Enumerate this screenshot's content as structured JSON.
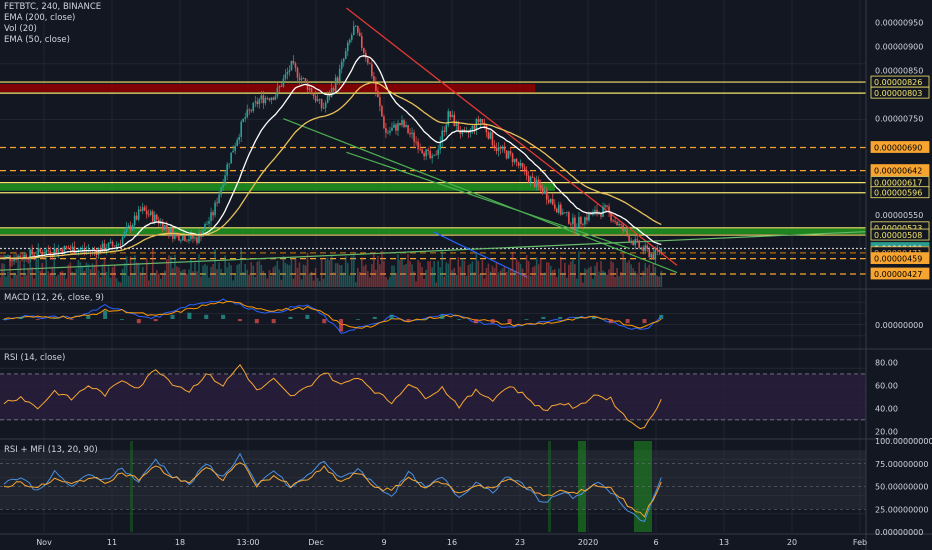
{
  "legend": {
    "symbol": "FETBTC, 240, BINANCE",
    "ema200": "EMA (200, close)",
    "vol": "Vol (20)",
    "ema50": "EMA (50, close)"
  },
  "panes": {
    "macd": "MACD (12, 26, close, 9)",
    "rsi": "RSI (14, close)",
    "rsimfi": "RSI + MFI (13, 20, 90)"
  },
  "colors": {
    "bg": "#131722",
    "grid": "#2a2e39",
    "up": "#26a69a",
    "down": "#ef5350",
    "ema200": "#ffffff",
    "ema50": "#e8c15a",
    "zone_red": "#8b0000",
    "zone_green": "#1e8f1e",
    "yellow_line": "#f5e56b",
    "orange_line": "#f7a530",
    "macd": "#2962ff",
    "signal": "#ff9800",
    "rsi": "#f7a530",
    "rsi_band": "#2a1f3d",
    "mfi": "#4a90e2"
  },
  "chart_data": [
    {
      "type": "candlestick",
      "pane": "price",
      "ylim": [
        4e-06,
        9.8e-06
      ],
      "y_ticks": [
        "0.00000950",
        "0.00000900",
        "0.00000850",
        "0.00000750",
        "0.00000550"
      ],
      "x_tick_labels": [
        "Nov",
        "11",
        "18",
        "13:00",
        "Dec",
        "9",
        "16",
        "23",
        "2020",
        "6",
        "13",
        "20",
        "Feb"
      ],
      "price_levels": [
        {
          "label": "0.00000826",
          "value": 8.26e-06,
          "style": "yellow"
        },
        {
          "label": "0.00000803",
          "value": 8.03e-06,
          "style": "yellow"
        },
        {
          "label": "0.00000690",
          "value": 6.9e-06,
          "style": "orange"
        },
        {
          "label": "0.00000642",
          "value": 6.42e-06,
          "style": "orange"
        },
        {
          "label": "0.00000617",
          "value": 6.17e-06,
          "style": "yellow"
        },
        {
          "label": "0.00000596",
          "value": 5.96e-06,
          "style": "yellow"
        },
        {
          "label": "0.00000523",
          "value": 5.23e-06,
          "style": "yellow"
        },
        {
          "label": "0.00000508",
          "value": 5.08e-06,
          "style": "yellow"
        },
        {
          "label": "0.00000480",
          "value": 4.8e-06,
          "style": "current"
        },
        {
          "label": "03:41:51",
          "value": 4.69e-06,
          "style": "timer"
        },
        {
          "label": "0.00000471",
          "value": 4.71e-06,
          "style": "orange-dark"
        },
        {
          "label": "0.00000459",
          "value": 4.59e-06,
          "style": "orange"
        },
        {
          "label": "0.00000427",
          "value": 4.27e-06,
          "style": "orange"
        }
      ],
      "zones": [
        {
          "color": "red",
          "low": 8.05e-06,
          "high": 8.22e-06
        },
        {
          "color": "green",
          "low": 6e-06,
          "high": 6.15e-06
        },
        {
          "color": "green",
          "low": 5.1e-06,
          "high": 5.22e-06
        }
      ],
      "series_path": [
        [
          0,
          4.6e-06
        ],
        [
          3,
          4.65e-06
        ],
        [
          6,
          4.75e-06
        ],
        [
          9,
          4.8e-06
        ],
        [
          12,
          4.75e-06
        ],
        [
          15,
          4.9e-06
        ],
        [
          18,
          5.6e-06
        ],
        [
          20,
          5.4e-06
        ],
        [
          22,
          5.1e-06
        ],
        [
          25,
          5e-06
        ],
        [
          27,
          5.5e-06
        ],
        [
          29,
          6.6e-06
        ],
        [
          31,
          7.5e-06
        ],
        [
          33,
          7.9e-06
        ],
        [
          35,
          8e-06
        ],
        [
          37,
          8.6e-06
        ],
        [
          39,
          8.2e-06
        ],
        [
          41,
          7.7e-06
        ],
        [
          43,
          8.4e-06
        ],
        [
          45,
          9.4e-06
        ],
        [
          47,
          8.6e-06
        ],
        [
          49,
          7.2e-06
        ],
        [
          51,
          7.4e-06
        ],
        [
          53,
          7e-06
        ],
        [
          55,
          6.6e-06
        ],
        [
          57,
          7.6e-06
        ],
        [
          59,
          7.1e-06
        ],
        [
          61,
          7.5e-06
        ],
        [
          63,
          6.9e-06
        ],
        [
          65,
          6.7e-06
        ],
        [
          67,
          6.3e-06
        ],
        [
          69,
          6e-06
        ],
        [
          71,
          5.6e-06
        ],
        [
          73,
          5.3e-06
        ],
        [
          75,
          5.5e-06
        ],
        [
          77,
          5.6e-06
        ],
        [
          79,
          5.2e-06
        ],
        [
          81,
          4.85e-06
        ],
        [
          83,
          4.65e-06
        ],
        [
          84,
          4.8e-06
        ]
      ],
      "x_domain": [
        0,
        110
      ]
    },
    {
      "type": "line",
      "pane": "macd",
      "title": "MACD (12, 26, close, 9)",
      "y_ticks": [
        "0.00000000"
      ],
      "ylim": [
        -1,
        1
      ],
      "series": [
        {
          "name": "MACD",
          "values": [
            0,
            0.1,
            0.05,
            0.1,
            0.05,
            0.2,
            0.5,
            0.3,
            0.1,
            0.05,
            0.3,
            0.5,
            0.6,
            0.7,
            0.5,
            0.3,
            0.2,
            0.4,
            0.5,
            0.1,
            -0.5,
            -0.3,
            -0.2,
            0.1,
            -0.1,
            0,
            0.2,
            0.1,
            -0.1,
            -0.2,
            -0.3,
            -0.2,
            -0.1,
            -0.05,
            0.05,
            0.1,
            -0.1,
            -0.3,
            -0.4,
            0.1
          ]
        },
        {
          "name": "Signal",
          "values": [
            0,
            0.05,
            0.07,
            0.08,
            0.06,
            0.12,
            0.3,
            0.3,
            0.2,
            0.1,
            0.2,
            0.35,
            0.5,
            0.6,
            0.55,
            0.4,
            0.3,
            0.35,
            0.4,
            0.2,
            -0.2,
            -0.3,
            -0.25,
            0,
            -0.05,
            0,
            0.1,
            0.1,
            0,
            -0.1,
            -0.2,
            -0.2,
            -0.15,
            -0.1,
            0,
            0.05,
            0,
            -0.2,
            -0.3,
            0
          ]
        }
      ]
    },
    {
      "type": "line",
      "pane": "rsi",
      "title": "RSI (14, close)",
      "y_ticks": [
        "80.00",
        "60.00",
        "40.00",
        "20.00"
      ],
      "ylim": [
        15,
        90
      ],
      "bands": [
        30,
        70
      ],
      "series": [
        {
          "name": "RSI",
          "values": [
            45,
            50,
            40,
            55,
            48,
            60,
            52,
            65,
            58,
            75,
            62,
            55,
            70,
            60,
            78,
            55,
            65,
            50,
            58,
            72,
            60,
            68,
            55,
            45,
            62,
            50,
            58,
            42,
            55,
            48,
            60,
            50,
            38,
            45,
            40,
            52,
            48,
            30,
            22,
            48
          ]
        }
      ]
    },
    {
      "type": "line",
      "pane": "rsimfi",
      "title": "RSI + MFI (13, 20, 90)",
      "y_ticks": [
        "100.00000000",
        "75.00000000",
        "50.00000000",
        "25.00000000",
        "0.00000000"
      ],
      "ylim": [
        0,
        100
      ],
      "series": [
        {
          "name": "RSI",
          "values": [
            55,
            60,
            45,
            65,
            50,
            62,
            58,
            70,
            55,
            80,
            62,
            52,
            75,
            60,
            85,
            50,
            68,
            48,
            62,
            78,
            58,
            70,
            52,
            40,
            65,
            48,
            60,
            38,
            55,
            45,
            62,
            48,
            32,
            42,
            38,
            55,
            45,
            25,
            10,
            60
          ]
        },
        {
          "name": "MFI",
          "values": [
            50,
            55,
            48,
            58,
            52,
            60,
            55,
            65,
            58,
            72,
            60,
            55,
            70,
            58,
            78,
            52,
            62,
            50,
            58,
            70,
            55,
            65,
            50,
            45,
            60,
            50,
            55,
            42,
            52,
            48,
            58,
            50,
            38,
            45,
            42,
            52,
            48,
            30,
            18,
            55
          ]
        }
      ]
    }
  ],
  "price_axis_labels": [
    "0.00000950",
    "0.00000900",
    "0.00000850",
    "0.00000750",
    "0.00000550"
  ],
  "macd_axis_label": "0.00000000",
  "rsi_axis_labels": [
    "80.00",
    "60.00",
    "40.00",
    "20.00"
  ],
  "rsimfi_axis_labels": [
    "100.00000000",
    "75.00000000",
    "50.00000000",
    "25.00000000",
    "0.00000000"
  ],
  "x_labels": [
    "Nov",
    "11",
    "18",
    "13:00",
    "Dec",
    "9",
    "16",
    "23",
    "2020",
    "6",
    "13",
    "20",
    "Feb"
  ]
}
